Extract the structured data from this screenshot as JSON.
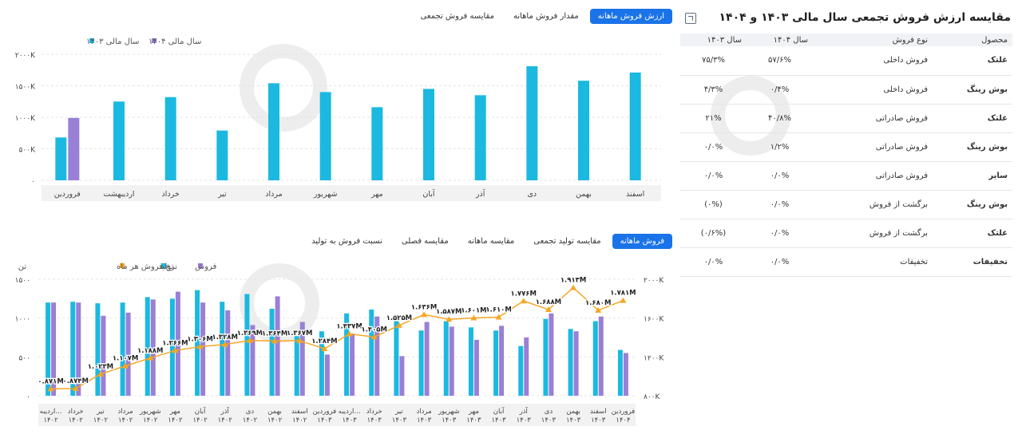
{
  "panel": {
    "title": "مقایسه ارزش فروش تجمعی سال مالی ۱۴۰۳ و ۱۴۰۴",
    "export_icon": "export-icon",
    "headers": [
      "محصول",
      "نوع فروش",
      "سال ۱۴۰۴",
      "سال ۱۴۰۳"
    ],
    "rows": [
      {
        "product": "غلتک",
        "type": "فروش داخلی",
        "v1404": "۵۷/۶%",
        "v1403": "۷۵/۳%"
      },
      {
        "product": "بوش رینگ",
        "type": "فروش داخلی",
        "v1404": "۰/۴%",
        "v1403": "۴/۳%"
      },
      {
        "product": "غلتک",
        "type": "فروش صادراتی",
        "v1404": "۴۰/۸%",
        "v1403": "۲۱%"
      },
      {
        "product": "بوش رینگ",
        "type": "فروش صادراتی",
        "v1404": "۱/۲%",
        "v1403": "۰/۰%"
      },
      {
        "product": "سایر",
        "type": "فروش صادراتی",
        "v1404": "۰/۰%",
        "v1403": "۰/۰%"
      },
      {
        "product": "بوش رینگ",
        "type": "برگشت از فروش",
        "v1404": "۰/۰%",
        "v1403": "(۰%)"
      },
      {
        "product": "غلتک",
        "type": "برگشت از فروش",
        "v1404": "۰/۰%",
        "v1403": "(۰/۶%)"
      },
      {
        "product": "تخفیفات",
        "type": "تخفیفات",
        "v1404": "۰/۰%",
        "v1403": "۰/۰%"
      }
    ]
  },
  "tabs_top": [
    {
      "label": "ارزش فروش ماهانه",
      "active": true
    },
    {
      "label": "مقدار فروش ماهانه",
      "active": false
    },
    {
      "label": "مقایسه فروش تجمعی",
      "active": false
    }
  ],
  "tabs_bottom": [
    {
      "label": "فروش ماهانه",
      "active": true
    },
    {
      "label": "مقایسه تولید تجمعی",
      "active": false
    },
    {
      "label": "مقایسه ماهانه",
      "active": false
    },
    {
      "label": "مقایسه فصلی",
      "active": false
    },
    {
      "label": "نسبت فروش به تولید",
      "active": false
    }
  ],
  "colors": {
    "cyan": "#1bb9e0",
    "purple": "#9a7fd6",
    "orange": "#f5a623",
    "tab_active": "#1a73e8"
  },
  "chart_data": [
    {
      "type": "bar",
      "legend": [
        "سال مالی ۱۴۰۳",
        "سال مالی ۱۴۰۴"
      ],
      "categories": [
        "فروردین",
        "اردیبهشت",
        "خرداد",
        "تیر",
        "مرداد",
        "شهریور",
        "مهر",
        "آبان",
        "آذر",
        "دی",
        "بهمن",
        "اسفند"
      ],
      "series": [
        {
          "name": "سال مالی ۱۴۰۳",
          "color": "#1bb9e0",
          "values": [
            680,
            1250,
            1320,
            790,
            1540,
            1400,
            1160,
            1450,
            1350,
            1810,
            1580,
            1710
          ]
        },
        {
          "name": "سال مالی ۱۴۰۴",
          "color": "#9a7fd6",
          "values": [
            990,
            null,
            null,
            null,
            null,
            null,
            null,
            null,
            null,
            null,
            null,
            null
          ]
        }
      ],
      "yticks": [
        "۰",
        "۵۰۰K",
        "۱۰۰۰K",
        "۱۵۰۰K",
        "۲۰۰۰K"
      ],
      "ylim": [
        0,
        2000
      ],
      "grid": true,
      "legend_position": "top-left"
    },
    {
      "type": "bar",
      "legend": [
        "فروش",
        "تولید",
        "نرخ فروش هر ماه"
      ],
      "left_unit": "تن",
      "categories": [
        "اردیبه... ۱۴۰۲",
        "خرداد ۱۴۰۲",
        "تیر ۱۴۰۲",
        "مرداد ۱۴۰۲",
        "شهریور ۱۴۰۲",
        "مهر ۱۴۰۲",
        "آبان ۱۴۰۲",
        "آذر ۱۴۰۲",
        "دی ۱۴۰۲",
        "بهمن ۱۴۰۲",
        "اسفند ۱۴۰۲",
        "فروردین ۱۴۰۳",
        "اردیبه... ۱۴۰۳",
        "خرداد ۱۴۰۳",
        "تیر ۱۴۰۳",
        "مرداد ۱۴۰۳",
        "شهریور ۱۴۰۳",
        "مهر ۱۴۰۳",
        "آبان ۱۴۰۳",
        "آذر ۱۴۰۳",
        "دی ۱۴۰۳",
        "بهمن ۱۴۰۳",
        "اسفند ۱۴۰۳",
        "فروردین ۱۴۰۴"
      ],
      "series": [
        {
          "name": "تولید",
          "color": "#1bb9e0",
          "axis": "left",
          "values": [
            1200,
            1210,
            1190,
            1200,
            1270,
            1250,
            1360,
            1210,
            1310,
            1120,
            770,
            830,
            1060,
            1110,
            960,
            840,
            960,
            880,
            840,
            640,
            990,
            860,
            960,
            590
          ]
        },
        {
          "name": "فروش",
          "color": "#9a7fd6",
          "axis": "left",
          "values": [
            1200,
            1200,
            1030,
            1070,
            1240,
            1340,
            1200,
            1100,
            910,
            1280,
            950,
            530,
            800,
            1020,
            510,
            950,
            890,
            720,
            900,
            750,
            1060,
            830,
            1020,
            550
          ]
        },
        {
          "name": "نرخ فروش هر ماه",
          "color": "#f5a623",
          "axis": "right",
          "values": [
            871,
            874,
            1023,
            1107,
            1188,
            1266,
            1306,
            1328,
            1369,
            1364,
            1367,
            1284,
            1437,
            1405,
            1525,
            1636,
            1587,
            1601,
            1610,
            1776,
            1688,
            1913,
            1680,
            1781
          ]
        }
      ],
      "point_labels": [
        "۰.۸۷۱M",
        "۰.۸۷۴M",
        "۱.۰۲۳M",
        "۱.۱۰۷M",
        "۱.۱۸۸M",
        "۱.۲۶۶M",
        "۱.۳۰۶M",
        "۱.۳۲۸M",
        "۱.۳۶۹M",
        "۱.۳۶۴M",
        "۱.۳۶۷M",
        "۱.۲۸۴M",
        "۱.۴۳۷M",
        "۱.۴۰۵M",
        "۱.۵۲۵M",
        "۱.۶۳۶M",
        "۱.۵۸۷M",
        "۱.۶۰۱M",
        "۱.۶۱۰M",
        "۱.۷۷۶M",
        "۱.۶۸۸M",
        "۱.۹۱۳M",
        "۱.۶۸۰M",
        "۱.۷۸۱M"
      ],
      "left_ticks": [
        "۰",
        "۵۰۰",
        "۱۰۰۰",
        "۱۵۰۰"
      ],
      "left_ylim": [
        0,
        1500
      ],
      "right_ticks": [
        "۸۰۰K",
        "۱۲۰۰K",
        "۱۶۰۰K",
        "۲۰۰۰K"
      ],
      "right_ylim": [
        800,
        2000
      ],
      "grid": true,
      "legend_position": "top-left"
    }
  ]
}
